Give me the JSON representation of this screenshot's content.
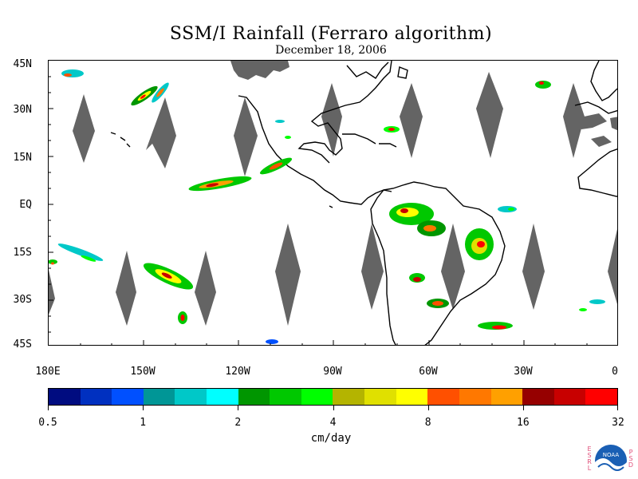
{
  "header": {
    "title": "SSM/I Rainfall (Ferraro algorithm)",
    "date": "December 18, 2006"
  },
  "map": {
    "lat_labels": [
      "45N",
      "30N",
      "15N",
      "EQ",
      "15S",
      "30S",
      "45S"
    ],
    "lon_labels": [
      "180E",
      "150W",
      "120W",
      "90W",
      "60W",
      "30W",
      "0"
    ],
    "no_data_color": "#646464",
    "coastline_color": "#000000"
  },
  "colorbar": {
    "colors": [
      "#000c80",
      "#0030c0",
      "#0050ff",
      "#009696",
      "#00c8c8",
      "#00ffff",
      "#009600",
      "#00c800",
      "#00ff00",
      "#b4b400",
      "#e0e000",
      "#ffff00",
      "#ff5000",
      "#ff7800",
      "#ffa000",
      "#960000",
      "#c80000",
      "#ff0000"
    ],
    "tick_labels": [
      "0.5",
      "1",
      "2",
      "4",
      "8",
      "16",
      "32"
    ],
    "units": "cm/day"
  },
  "logo": {
    "name": "noaa-logo",
    "left_letters": "ESRL",
    "right_letters": "PSD",
    "emblem_text": "NOAA"
  }
}
